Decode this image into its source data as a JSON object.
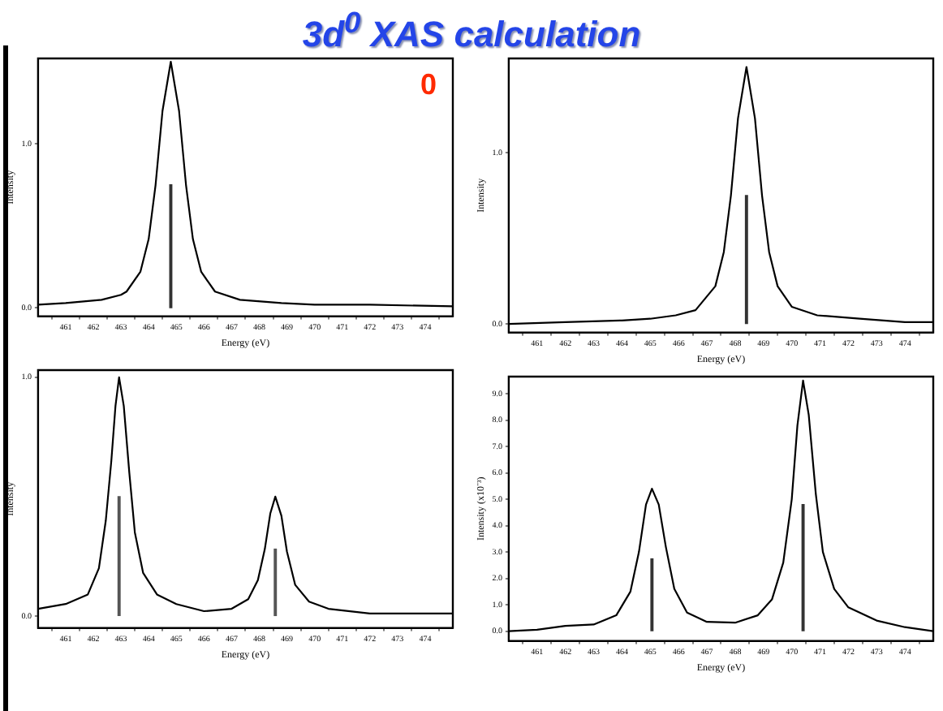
{
  "chart_data": [
    {
      "type": "line",
      "title": "3d$^{0}$  XAS calculation",
      "xlabel": "Energy (eV)",
      "ylabel": "Intensity",
      "annotations": [
        "0"
      ],
      "legend": false,
      "xlim": [
        460,
        475
      ],
      "xticks": [
        461,
        462,
        463,
        464,
        465,
        466,
        467,
        468,
        469,
        470,
        471,
        472,
        473,
        474
      ],
      "ylim": [
        -0.05,
        1.52
      ],
      "yticks": [
        {
          "value": 0,
          "label": "0.0"
        },
        {
          "value": 1,
          "label": "1.0"
        }
      ],
      "series": [
        {
          "color": "#000000",
          "x": [
            460,
            461,
            462.3,
            463,
            463.2,
            463.7,
            464.0,
            464.25,
            464.5,
            464.8,
            465.1,
            465.35,
            465.6,
            465.9,
            466.4,
            467.3,
            468.8,
            470,
            472,
            475
          ],
          "values": [
            0.02,
            0.03,
            0.05,
            0.08,
            0.1,
            0.22,
            0.42,
            0.75,
            1.2,
            1.5,
            1.2,
            0.75,
            0.42,
            0.22,
            0.1,
            0.05,
            0.03,
            0.02,
            0.02,
            0.01
          ]
        },
        {
          "type": "bar",
          "color": "#333333",
          "x": [
            464.8
          ],
          "values": [
            0.75
          ]
        }
      ]
    },
    {
      "type": "line",
      "xlabel": "Energy (eV)",
      "ylabel": "Intensity",
      "legend": false,
      "xlim": [
        460,
        475
      ],
      "xticks": [
        461,
        462,
        463,
        464,
        465,
        466,
        467,
        468,
        469,
        470,
        471,
        472,
        473,
        474
      ],
      "ylim": [
        -0.05,
        1.55
      ],
      "yticks": [
        {
          "value": 0,
          "label": "0.0"
        },
        {
          "value": 1,
          "label": "1.0"
        }
      ],
      "series": [
        {
          "color": "#000000",
          "x": [
            460,
            462,
            464,
            465,
            465.9,
            466.6,
            467.3,
            467.6,
            467.85,
            468.1,
            468.4,
            468.7,
            468.95,
            469.2,
            469.5,
            470,
            470.9,
            472.4,
            474,
            475
          ],
          "values": [
            0.0,
            0.01,
            0.02,
            0.03,
            0.05,
            0.08,
            0.22,
            0.42,
            0.75,
            1.2,
            1.5,
            1.2,
            0.75,
            0.42,
            0.22,
            0.1,
            0.05,
            0.03,
            0.01,
            0.01
          ]
        },
        {
          "type": "bar",
          "color": "#333333",
          "x": [
            468.4
          ],
          "values": [
            0.75
          ]
        }
      ]
    },
    {
      "type": "line",
      "xlabel": "Energy (eV)",
      "ylabel": "Intensity",
      "legend": false,
      "xlim": [
        460,
        475
      ],
      "xticks": [
        461,
        462,
        463,
        464,
        465,
        466,
        467,
        468,
        469,
        470,
        471,
        472,
        473,
        474
      ],
      "ylim": [
        -0.05,
        1.03
      ],
      "yticks": [
        {
          "value": 0,
          "label": "0.0"
        },
        {
          "value": 1,
          "label": "1.0"
        }
      ],
      "series": [
        {
          "color": "#000000",
          "x": [
            460,
            461,
            461.8,
            462.2,
            462.45,
            462.65,
            462.8,
            462.93,
            463.1,
            463.3,
            463.5,
            463.8,
            464.3,
            465,
            466,
            467,
            467.6,
            467.95,
            468.2,
            468.4,
            468.58,
            468.8,
            469.0,
            469.3,
            469.8,
            470.5,
            472,
            475
          ],
          "values": [
            0.03,
            0.05,
            0.09,
            0.2,
            0.4,
            0.65,
            0.88,
            1.0,
            0.88,
            0.6,
            0.35,
            0.18,
            0.09,
            0.05,
            0.02,
            0.03,
            0.07,
            0.15,
            0.28,
            0.43,
            0.5,
            0.42,
            0.27,
            0.13,
            0.06,
            0.03,
            0.01,
            0.01
          ]
        },
        {
          "type": "bar",
          "color": "#555555",
          "x": [
            462.93,
            468.58
          ],
          "values": [
            0.5,
            0.28
          ]
        }
      ]
    },
    {
      "type": "line",
      "xlabel": "Energy (eV)",
      "ylabel": "Intensity (x10⁻³)",
      "legend": false,
      "xlim": [
        460,
        475
      ],
      "xticks": [
        461,
        462,
        463,
        464,
        465,
        466,
        467,
        468,
        469,
        470,
        471,
        472,
        473,
        474
      ],
      "ylim": [
        -0.37,
        9.65
      ],
      "yticks": [
        {
          "value": 0,
          "label": "0.0"
        },
        {
          "value": 1,
          "label": "1.0"
        },
        {
          "value": 2,
          "label": "2.0"
        },
        {
          "value": 3,
          "label": "3.0"
        },
        {
          "value": 4,
          "label": "4.0"
        },
        {
          "value": 5,
          "label": "5.0"
        },
        {
          "value": 6,
          "label": "6.0"
        },
        {
          "value": 7,
          "label": "7.0"
        },
        {
          "value": 8,
          "label": "8.0"
        },
        {
          "value": 9,
          "label": "9.0"
        }
      ],
      "series": [
        {
          "color": "#000000",
          "x": [
            460,
            461,
            462,
            463,
            463.8,
            464.3,
            464.6,
            464.85,
            465.06,
            465.3,
            465.55,
            465.85,
            466.3,
            467,
            468,
            468.8,
            469.3,
            469.7,
            470.0,
            470.2,
            470.4,
            470.6,
            470.85,
            471.1,
            471.5,
            472,
            473,
            474,
            475
          ],
          "values": [
            0.0,
            0.05,
            0.2,
            0.25,
            0.6,
            1.5,
            3.0,
            4.8,
            5.4,
            4.8,
            3.2,
            1.6,
            0.7,
            0.35,
            0.32,
            0.6,
            1.2,
            2.6,
            5.0,
            7.8,
            9.5,
            8.2,
            5.2,
            3.0,
            1.6,
            0.9,
            0.4,
            0.15,
            0.0
          ]
        },
        {
          "type": "bar",
          "color": "#333333",
          "x": [
            465.06,
            470.4
          ],
          "values": [
            2.74,
            4.8
          ]
        }
      ]
    }
  ]
}
